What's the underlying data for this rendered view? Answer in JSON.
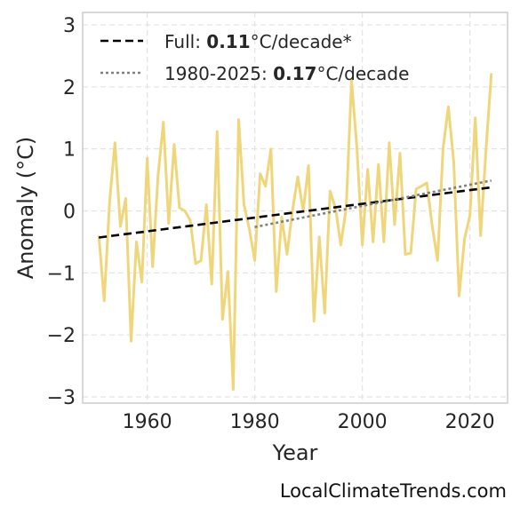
{
  "chart_data": {
    "type": "line",
    "xlabel": "Year",
    "ylabel": "Anomaly (°C)",
    "xlim": [
      1948,
      2027
    ],
    "ylim": [
      -3.1,
      3.2
    ],
    "x_ticks": [
      1960,
      1980,
      2000,
      2020
    ],
    "y_ticks": [
      -3,
      -2,
      -1,
      0,
      1,
      2,
      3
    ],
    "y_tick_labels": [
      "−3",
      "−2",
      "−1",
      "0",
      "1",
      "2",
      "3"
    ],
    "grid": true,
    "legend_position": "top-left",
    "series": [
      {
        "kind": "anomaly",
        "color": "#f0d67a",
        "x": [
          1951,
          1952,
          1953,
          1954,
          1955,
          1956,
          1957,
          1958,
          1959,
          1960,
          1961,
          1962,
          1963,
          1964,
          1965,
          1966,
          1967,
          1968,
          1969,
          1970,
          1971,
          1972,
          1973,
          1974,
          1975,
          1976,
          1977,
          1978,
          1979,
          1980,
          1981,
          1982,
          1983,
          1984,
          1985,
          1986,
          1987,
          1988,
          1989,
          1990,
          1991,
          1992,
          1993,
          1994,
          1995,
          1996,
          1997,
          1998,
          1999,
          2000,
          2001,
          2002,
          2003,
          2004,
          2005,
          2006,
          2007,
          2008,
          2009,
          2010,
          2011,
          2012,
          2013,
          2014,
          2015,
          2016,
          2017,
          2018,
          2019,
          2020,
          2021,
          2022,
          2023,
          2024
        ],
        "y": [
          -0.4,
          -1.45,
          0.15,
          1.1,
          -0.25,
          0.2,
          -2.1,
          -0.5,
          -1.15,
          0.85,
          -0.9,
          0.55,
          1.43,
          -0.2,
          1.07,
          0.05,
          0.0,
          -0.15,
          -0.85,
          -0.8,
          0.1,
          -1.18,
          1.28,
          -1.75,
          -0.98,
          -2.88,
          1.47,
          0.1,
          -0.3,
          -0.8,
          0.6,
          0.4,
          1.0,
          -1.3,
          -0.1,
          -0.7,
          0.0,
          0.55,
          0.0,
          0.73,
          -1.78,
          -0.42,
          -1.65,
          0.32,
          0.05,
          -0.55,
          0.05,
          2.1,
          1.0,
          -0.55,
          0.67,
          -0.5,
          0.75,
          -0.5,
          1.1,
          -0.22,
          0.93,
          -0.7,
          -0.68,
          0.35,
          0.4,
          0.45,
          -0.25,
          -0.8,
          1.0,
          1.68,
          0.78,
          -1.37,
          -0.45,
          -0.08,
          1.5,
          -0.4,
          1.0,
          2.22
        ]
      },
      {
        "name": "Full: 0.11°C/decade*",
        "kind": "trend-full",
        "color": "#000000",
        "style": "dashed",
        "x": [
          1951,
          2024
        ],
        "y": [
          -0.43,
          0.38
        ]
      },
      {
        "name": "1980-2025: 0.17°C/decade",
        "kind": "trend-recent",
        "color": "#808080",
        "style": "dotted",
        "x": [
          1980,
          2024
        ],
        "y": [
          -0.26,
          0.49
        ]
      }
    ],
    "legend": [
      {
        "prefix": "Full: ",
        "value": "0.11",
        "suffix": "°C/decade*",
        "style": "dashed",
        "color": "#000000"
      },
      {
        "prefix": "1980-2025: ",
        "value": "0.17",
        "suffix": "°C/decade",
        "style": "dotted",
        "color": "#808080"
      }
    ]
  },
  "watermark": "LocalClimateTrends.com"
}
